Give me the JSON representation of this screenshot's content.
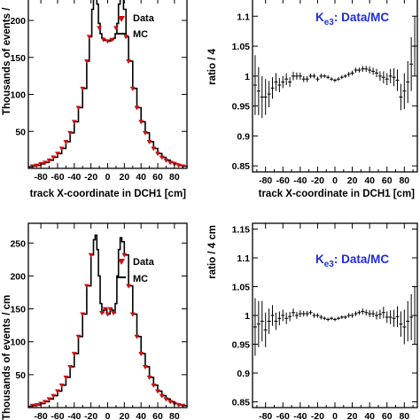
{
  "chart_data": [
    {
      "id": "top-left",
      "type": "line",
      "xlabel": "track X-coordinate in DCH1 [cm]",
      "ylabel": "Thousands of events / ",
      "xlim": [
        -95,
        95
      ],
      "ylim": [
        0,
        230
      ],
      "xticks": [
        -80,
        -60,
        -40,
        -20,
        0,
        20,
        40,
        60,
        80
      ],
      "yticks": [
        50,
        100,
        150,
        200
      ],
      "legend": {
        "position": "top-right",
        "entries": [
          "Data",
          "MC"
        ]
      },
      "series": [
        {
          "name": "MC",
          "style": "step",
          "color": "#000000",
          "x": [
            -95,
            -90,
            -85,
            -80,
            -75,
            -70,
            -65,
            -60,
            -55,
            -50,
            -45,
            -40,
            -35,
            -30,
            -25,
            -22,
            -19,
            -17,
            -15,
            -13,
            -11,
            -9,
            -7,
            -5,
            -3,
            0,
            3,
            5,
            7,
            9,
            11,
            13,
            15,
            17,
            19,
            22,
            25,
            30,
            35,
            40,
            45,
            50,
            55,
            60,
            65,
            70,
            75,
            80,
            85,
            90,
            95
          ],
          "y": [
            2,
            3,
            4,
            6,
            8,
            11,
            15,
            20,
            27,
            36,
            48,
            63,
            82,
            108,
            145,
            178,
            215,
            235,
            240,
            222,
            196,
            182,
            176,
            174,
            173,
            172,
            173,
            174,
            176,
            182,
            196,
            222,
            240,
            235,
            215,
            178,
            145,
            108,
            82,
            63,
            48,
            36,
            27,
            20,
            15,
            11,
            8,
            6,
            4,
            3,
            2
          ]
        },
        {
          "name": "Data",
          "style": "marker",
          "color": "#cc1111",
          "x": [
            -90,
            -85,
            -80,
            -75,
            -70,
            -65,
            -60,
            -55,
            -50,
            -45,
            -40,
            -35,
            -30,
            -25,
            -22,
            -10,
            -5,
            0,
            5,
            10,
            22,
            25,
            30,
            35,
            40,
            45,
            50,
            55,
            60,
            65,
            70,
            75,
            80,
            85,
            90
          ],
          "y": [
            3,
            4,
            6,
            8,
            11,
            15,
            20,
            27,
            36,
            48,
            63,
            82,
            108,
            145,
            178,
            190,
            174,
            172,
            174,
            190,
            178,
            145,
            108,
            82,
            63,
            48,
            36,
            27,
            20,
            15,
            11,
            8,
            6,
            4,
            3
          ]
        }
      ]
    },
    {
      "id": "top-right",
      "type": "scatter",
      "title": "Kₑ₃: Data/MC",
      "title_main": "K",
      "title_sub": "e3",
      "title_rest": ": Data/MC",
      "xlabel": "track X-coordinate in DCH1 [cm]",
      "ylabel": "ratio / 4",
      "xlim": [
        -95,
        95
      ],
      "ylim": [
        0.84,
        1.13
      ],
      "xticks": [
        -80,
        -60,
        -40,
        -20,
        0,
        20,
        40,
        60,
        80
      ],
      "yticks": [
        0.85,
        0.9,
        0.95,
        1,
        1.05,
        1.1
      ],
      "ytick_labels": [
        "0.85",
        "0.9",
        "0.95",
        "1",
        "1.05",
        "1.1"
      ],
      "series": [
        {
          "x": [
            -92,
            -88,
            -84,
            -80,
            -76,
            -72,
            -68,
            -64,
            -60,
            -56,
            -52,
            -48,
            -44,
            -40,
            -36,
            -32,
            -28,
            -24,
            -20,
            -16,
            -12,
            -8,
            -4,
            0,
            4,
            8,
            12,
            16,
            20,
            24,
            28,
            32,
            36,
            40,
            44,
            48,
            52,
            56,
            60,
            64,
            68,
            72,
            76,
            80,
            84,
            88,
            92
          ],
          "y": [
            0.985,
            0.975,
            0.965,
            0.965,
            0.97,
            0.98,
            0.99,
            0.985,
            0.99,
            0.995,
            0.99,
            1.0,
            1.0,
            1.0,
            0.995,
            0.995,
            1.0,
            1.0,
            0.995,
            1.0,
            1.0,
            0.998,
            0.995,
            0.993,
            0.995,
            0.998,
            1.0,
            1.003,
            1.005,
            1.01,
            1.01,
            1.012,
            1.012,
            1.01,
            1.008,
            1.005,
            1.0,
            0.998,
            0.995,
            1.0,
            0.998,
            0.993,
            0.965,
            0.975,
            0.99,
            1.02,
            1.05
          ],
          "err": [
            0.05,
            0.04,
            0.035,
            0.03,
            0.022,
            0.018,
            0.015,
            0.012,
            0.01,
            0.01,
            0.008,
            0.007,
            0.006,
            0.006,
            0.005,
            0.005,
            0.004,
            0.004,
            0.004,
            0.004,
            0.003,
            0.003,
            0.003,
            0.003,
            0.003,
            0.003,
            0.003,
            0.004,
            0.004,
            0.004,
            0.004,
            0.005,
            0.005,
            0.006,
            0.006,
            0.007,
            0.008,
            0.01,
            0.01,
            0.012,
            0.015,
            0.018,
            0.022,
            0.03,
            0.035,
            0.045,
            0.05
          ]
        }
      ]
    },
    {
      "id": "bottom-left",
      "type": "line",
      "xlabel": "",
      "ylabel": "Thousands of events / cm",
      "xlim": [
        -95,
        95
      ],
      "ylim": [
        0,
        280
      ],
      "xticks": [
        -80,
        -60,
        -40,
        -20,
        0,
        20,
        40,
        60,
        80
      ],
      "yticks": [
        50,
        100,
        150,
        200,
        250
      ],
      "legend": {
        "position": "top-right",
        "entries": [
          "Data",
          "MC"
        ]
      },
      "series": [
        {
          "name": "MC",
          "style": "step",
          "color": "#000000",
          "x": [
            -95,
            -90,
            -85,
            -80,
            -75,
            -70,
            -65,
            -60,
            -55,
            -50,
            -45,
            -40,
            -35,
            -30,
            -25,
            -20,
            -17,
            -15,
            -13,
            -11,
            -9,
            -7,
            -5,
            -3,
            -1,
            1,
            3,
            5,
            7,
            9,
            11,
            13,
            15,
            17,
            20,
            25,
            30,
            35,
            40,
            45,
            50,
            55,
            60,
            65,
            70,
            75,
            80,
            85,
            90,
            95
          ],
          "y": [
            2,
            3,
            4,
            6,
            9,
            13,
            18,
            25,
            34,
            46,
            62,
            82,
            108,
            142,
            185,
            232,
            255,
            262,
            240,
            200,
            158,
            144,
            148,
            150,
            142,
            142,
            150,
            148,
            144,
            158,
            200,
            240,
            258,
            252,
            232,
            185,
            142,
            108,
            82,
            62,
            46,
            34,
            25,
            18,
            13,
            9,
            6,
            4,
            3,
            2
          ]
        },
        {
          "name": "Data",
          "style": "marker",
          "color": "#cc1111",
          "x": [
            -90,
            -85,
            -80,
            -75,
            -70,
            -65,
            -60,
            -55,
            -50,
            -45,
            -40,
            -35,
            -30,
            -25,
            -20,
            -7,
            -3,
            0,
            3,
            7,
            20,
            25,
            30,
            35,
            40,
            45,
            50,
            55,
            60,
            65,
            70,
            75,
            80,
            85,
            90
          ],
          "y": [
            3,
            4,
            6,
            9,
            13,
            18,
            25,
            34,
            46,
            62,
            82,
            108,
            142,
            185,
            232,
            144,
            150,
            142,
            150,
            144,
            232,
            185,
            142,
            108,
            82,
            62,
            46,
            34,
            25,
            18,
            13,
            9,
            6,
            4,
            3
          ]
        }
      ]
    },
    {
      "id": "bottom-right",
      "type": "scatter",
      "title_main": "K",
      "title_sub": "e3",
      "title_rest": ": Data/MC",
      "xlabel": "",
      "ylabel": "ratio / 4 cm",
      "xlim": [
        -95,
        95
      ],
      "ylim": [
        0.84,
        1.16
      ],
      "xticks": [
        -80,
        -60,
        -40,
        -20,
        0,
        20,
        40,
        60,
        80
      ],
      "yticks": [
        0.85,
        0.9,
        0.95,
        1,
        1.05,
        1.1,
        1.15
      ],
      "ytick_labels": [
        "0.85",
        "0.9",
        "0.95",
        "1",
        "1.05",
        "1.1",
        "1.15"
      ],
      "series": [
        {
          "x": [
            -92,
            -88,
            -84,
            -80,
            -76,
            -72,
            -68,
            -64,
            -60,
            -56,
            -52,
            -48,
            -44,
            -40,
            -36,
            -32,
            -28,
            -24,
            -20,
            -16,
            -12,
            -8,
            -4,
            0,
            4,
            8,
            12,
            16,
            20,
            24,
            28,
            32,
            36,
            40,
            44,
            48,
            52,
            56,
            60,
            64,
            68,
            72,
            76,
            80,
            84,
            88,
            92
          ],
          "y": [
            0.98,
            0.985,
            0.99,
            0.975,
            0.99,
            1.0,
            0.99,
            0.995,
            1.0,
            0.995,
            0.998,
            1.005,
            1.0,
            1.003,
            1.003,
            1.003,
            1.005,
            1.0,
            1.0,
            0.997,
            0.995,
            0.993,
            0.995,
            0.993,
            0.995,
            0.997,
            0.997,
            1.0,
            1.0,
            1.003,
            1.005,
            1.007,
            1.005,
            1.003,
            1.003,
            1.0,
            1.002,
            1.005,
            0.997,
            0.997,
            0.995,
            0.998,
            0.985,
            0.98,
            0.99,
            0.997,
            1.0
          ],
          "err": [
            0.05,
            0.04,
            0.035,
            0.03,
            0.022,
            0.018,
            0.015,
            0.012,
            0.01,
            0.01,
            0.008,
            0.007,
            0.006,
            0.006,
            0.005,
            0.005,
            0.004,
            0.004,
            0.004,
            0.004,
            0.003,
            0.003,
            0.003,
            0.003,
            0.003,
            0.003,
            0.003,
            0.004,
            0.004,
            0.004,
            0.004,
            0.005,
            0.005,
            0.006,
            0.006,
            0.007,
            0.008,
            0.01,
            0.01,
            0.012,
            0.015,
            0.018,
            0.022,
            0.03,
            0.035,
            0.04,
            0.05
          ]
        }
      ]
    }
  ]
}
